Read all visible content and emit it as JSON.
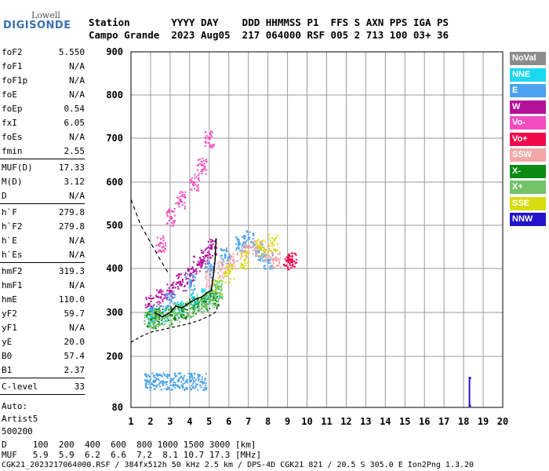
{
  "logo": {
    "brand": "Lowell",
    "name": "DIGISONDE"
  },
  "header": {
    "line1": "Station       YYYY DAY    DDD HHMMSS P1  FFS S AXN PPS IGA PS",
    "line2": "Campo Grande  2023 Aug05  217 064000 RSF 005 2 713 100 03+ 36"
  },
  "sidebar": {
    "group1": [
      {
        "k": "foF2",
        "v": "5.550"
      },
      {
        "k": "foF1",
        "v": "N/A"
      },
      {
        "k": "foF1p",
        "v": "N/A"
      },
      {
        "k": "foE",
        "v": "N/A"
      },
      {
        "k": "foEp",
        "v": "0.54"
      },
      {
        "k": "fxI",
        "v": "6.05"
      },
      {
        "k": "foEs",
        "v": "N/A"
      },
      {
        "k": "fmin",
        "v": "2.55"
      }
    ],
    "group2": [
      {
        "k": "MUF(D)",
        "v": "17.33"
      },
      {
        "k": "M(D)",
        "v": "3.12"
      },
      {
        "k": "D",
        "v": "N/A"
      }
    ],
    "group3": [
      {
        "k": "h`F",
        "v": "279.8"
      },
      {
        "k": "h`F2",
        "v": "279.8"
      },
      {
        "k": "h`E",
        "v": "N/A"
      },
      {
        "k": "h`Es",
        "v": "N/A"
      }
    ],
    "group4": [
      {
        "k": "hmF2",
        "v": "319.3"
      },
      {
        "k": "hmF1",
        "v": "N/A"
      },
      {
        "k": "hmE",
        "v": "110.0"
      },
      {
        "k": "yF2",
        "v": "59.7"
      },
      {
        "k": "yF1",
        "v": "N/A"
      },
      {
        "k": "yE",
        "v": "20.0"
      },
      {
        "k": "B0",
        "v": "57.4"
      },
      {
        "k": "B1",
        "v": "2.37"
      }
    ],
    "clevel": {
      "k": "C-level",
      "v": "33"
    },
    "auto": [
      "Auto:",
      "Artist5",
      "500200"
    ]
  },
  "legend": [
    {
      "label": "NoVal",
      "color": "#8c8c8c"
    },
    {
      "label": "NNE",
      "color": "#19d8f0"
    },
    {
      "label": "E",
      "color": "#4aa3ee"
    },
    {
      "label": "W",
      "color": "#b4119b"
    },
    {
      "label": "Vo-",
      "color": "#f34cc0"
    },
    {
      "label": "Vo+",
      "color": "#f0084a"
    },
    {
      "label": "SSW",
      "color": "#f4a7a7"
    },
    {
      "label": "X-",
      "color": "#0b8a11"
    },
    {
      "label": "X+",
      "color": "#74c26a"
    },
    {
      "label": "SSE",
      "color": "#d6dc10"
    },
    {
      "label": "NNW",
      "color": "#2314cc"
    }
  ],
  "bottom": {
    "line1": "D     100  200  400  600  800 1000 1500 3000 [km]",
    "line2": "MUF   5.9  5.9  6.2  6.6  7.2  8.1 10.7 17.3 [MHz]",
    "footer": "CGK21_2023217064000.RSF / 384fx512h 50 kHz 2.5 km / DPS-4D CGK21 821 / 20.5 S 305.0 E Ion2Png 1.3.20"
  },
  "chart_data": {
    "type": "scatter",
    "xlim": [
      1,
      20
    ],
    "ylim": [
      80,
      900
    ],
    "x_ticks": [
      1,
      2,
      3,
      4,
      5,
      6,
      7,
      8,
      9,
      10,
      11,
      12,
      13,
      14,
      15,
      16,
      17,
      18,
      19,
      20
    ],
    "y_ticks": [
      80,
      200,
      300,
      400,
      500,
      600,
      700,
      800,
      900
    ],
    "grid": true,
    "legend_position": "right",
    "traces": [
      {
        "name": "W",
        "x": [
          1.9,
          2.5,
          3.0,
          3.5,
          4.0,
          4.4,
          4.8,
          5.1
        ],
        "y": [
          320,
          335,
          350,
          370,
          385,
          410,
          430,
          450
        ]
      },
      {
        "name": "Vo-",
        "x": [
          2.5,
          3.0,
          3.5,
          4.2,
          4.6,
          5.0
        ],
        "y": [
          460,
          520,
          560,
          600,
          640,
          700
        ]
      },
      {
        "name": "E",
        "x": [
          2.2,
          3.0,
          4.0,
          5.0,
          5.8,
          6.5,
          7.0,
          7.5,
          8.0
        ],
        "y": [
          300,
          330,
          370,
          400,
          430,
          460,
          470,
          440,
          420
        ]
      },
      {
        "name": "NNE",
        "x": [
          2.0,
          2.6,
          3.4,
          4.2,
          4.8,
          5.4
        ],
        "y": [
          290,
          300,
          310,
          330,
          340,
          355
        ]
      },
      {
        "name": "SSW",
        "x": [
          5.0,
          5.6,
          6.2,
          6.8,
          7.4,
          8.0,
          8.4
        ],
        "y": [
          380,
          400,
          420,
          440,
          450,
          430,
          420
        ]
      },
      {
        "name": "SSE",
        "x": [
          5.4,
          6.0,
          6.8,
          7.6,
          8.2
        ],
        "y": [
          360,
          390,
          420,
          450,
          460
        ]
      },
      {
        "name": "X-",
        "x": [
          2.0,
          2.4,
          3.0,
          3.6,
          4.2,
          4.8,
          5.2
        ],
        "y": [
          285,
          290,
          295,
          305,
          315,
          325,
          335
        ]
      },
      {
        "name": "X+",
        "x": [
          1.9,
          2.3,
          2.8,
          3.4,
          4.0,
          4.6,
          5.0,
          5.4
        ],
        "y": [
          285,
          288,
          292,
          300,
          310,
          320,
          330,
          345
        ]
      },
      {
        "name": "E",
        "x": [
          1.9,
          2.2,
          2.6,
          3.0,
          3.4,
          3.8,
          4.2,
          4.6
        ],
        "y": [
          142,
          143,
          142,
          142,
          143,
          142,
          142,
          141
        ]
      },
      {
        "name": "Vo+",
        "x": [
          9.0,
          9.2
        ],
        "y": [
          418,
          418
        ]
      },
      {
        "name": "NNW",
        "x": [
          18.3,
          18.3
        ],
        "y": [
          85,
          150
        ]
      }
    ],
    "profile_curve": {
      "x": [
        1.0,
        1.5,
        2.0,
        2.5,
        3.0,
        3.5,
        4.0,
        4.5,
        5.0,
        5.3,
        5.4,
        5.45
      ],
      "y": [
        232,
        245,
        255,
        260,
        265,
        270,
        275,
        282,
        292,
        300,
        310,
        320
      ]
    },
    "mufd_curve": {
      "x": [
        1.0,
        1.5,
        2.0,
        2.5,
        2.9
      ],
      "y": [
        560,
        500,
        460,
        420,
        390
      ]
    },
    "trace_line": {
      "x": [
        2.2,
        2.6,
        3.0,
        3.3,
        3.6,
        4.0,
        4.3,
        4.6,
        4.9,
        5.1,
        5.2,
        5.3,
        5.35
      ],
      "y": [
        300,
        290,
        300,
        315,
        310,
        322,
        330,
        335,
        345,
        350,
        380,
        420,
        470
      ]
    }
  }
}
